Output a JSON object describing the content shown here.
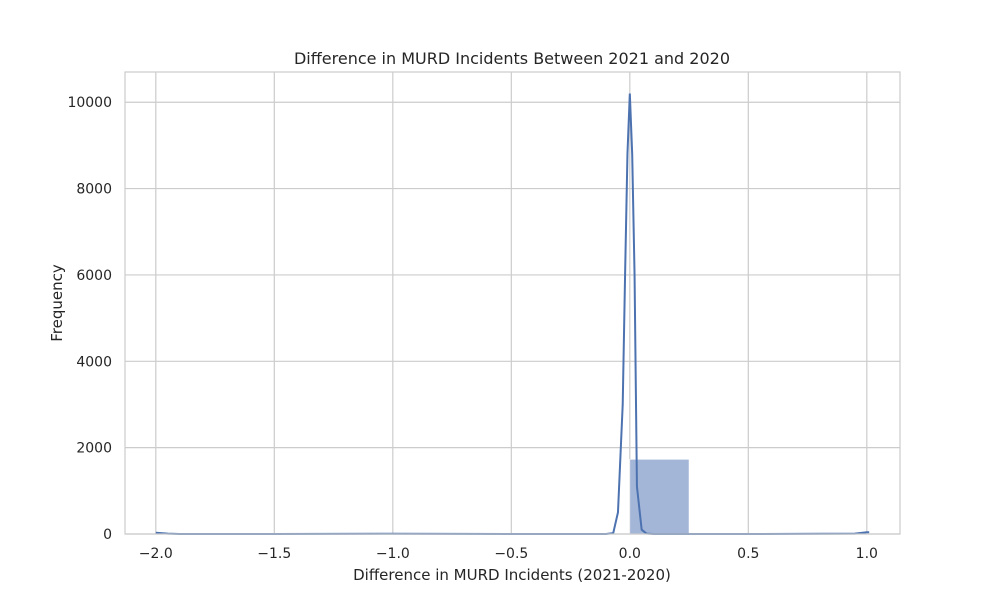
{
  "chart_data": {
    "type": "bar",
    "title": "Difference in MURD Incidents Between 2021 and 2020",
    "xlabel": "Difference in MURD Incidents (2021-2020)",
    "ylabel": "Frequency",
    "xlim": [
      -2.13,
      1.14
    ],
    "ylim": [
      0,
      10700
    ],
    "x_ticks": [
      -2.0,
      -1.5,
      -1.0,
      -0.5,
      0.0,
      0.5,
      1.0
    ],
    "x_tick_labels": [
      "−2.0",
      "−1.5",
      "−1.0",
      "−0.5",
      "0.0",
      "0.5",
      "1.0"
    ],
    "y_ticks": [
      0,
      2000,
      4000,
      6000,
      8000,
      10000
    ],
    "y_tick_labels": [
      "0",
      "2000",
      "4000",
      "6000",
      "8000",
      "10000"
    ],
    "grid": true,
    "bars": [
      {
        "x0": -2.0,
        "x1": -1.75,
        "value": 3
      },
      {
        "x0": -1.0,
        "x1": -0.75,
        "value": 2
      },
      {
        "x0": 0.0,
        "x1": 0.25,
        "value": 1730
      },
      {
        "x0": 0.75,
        "x1": 1.0,
        "value": 0
      },
      {
        "x0": 0.98,
        "x1": 1.0,
        "value": 40
      }
    ],
    "kde": {
      "x": [
        -2.0,
        -1.95,
        -1.9,
        -1.5,
        -1.0,
        -0.5,
        -0.1,
        -0.07,
        -0.05,
        -0.03,
        -0.02,
        -0.01,
        0.0,
        0.01,
        0.02,
        0.03,
        0.05,
        0.07,
        0.1,
        0.5,
        0.95,
        1.0,
        1.01
      ],
      "y": [
        30,
        8,
        0,
        0,
        5,
        0,
        0,
        20,
        500,
        3000,
        6000,
        8800,
        10200,
        8800,
        6000,
        1100,
        100,
        10,
        0,
        0,
        10,
        40,
        40
      ]
    },
    "colors": {
      "bar": "#a4b6d8",
      "line": "#4c72b0",
      "grid": "#cccccc",
      "frame": "#cccccc"
    }
  }
}
